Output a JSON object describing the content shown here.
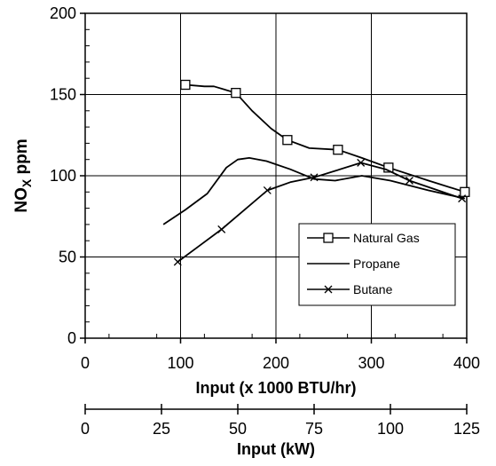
{
  "chart_data": {
    "type": "line",
    "xlabel": "Input  (x 1000 BTU/hr)",
    "ylabel_main": "NO",
    "ylabel_sub": "X",
    "ylabel_rest": " ppm",
    "xlim": [
      0,
      400
    ],
    "ylim": [
      0,
      200
    ],
    "grid": true,
    "x_ticks": [
      "0",
      "100",
      "200",
      "300",
      "400"
    ],
    "y_ticks": [
      "0",
      "50",
      "100",
      "150",
      "200"
    ],
    "secondary_axis": {
      "label": "Input  (kW)",
      "xlim": [
        0,
        125
      ],
      "ticks": [
        "0",
        "25",
        "50",
        "75",
        "100",
        "125"
      ]
    },
    "legend_position": "lower-right",
    "series": [
      {
        "name": "Natural Gas",
        "marker": "square",
        "points": [
          [
            105,
            156
          ],
          [
            125,
            155
          ],
          [
            135,
            155
          ],
          [
            158,
            151
          ],
          [
            175,
            140
          ],
          [
            195,
            129
          ],
          [
            212,
            122
          ],
          [
            235,
            117
          ],
          [
            265,
            116
          ],
          [
            290,
            111
          ],
          [
            318,
            105
          ],
          [
            360,
            97
          ],
          [
            398,
            90
          ]
        ],
        "markers": [
          [
            105,
            156
          ],
          [
            158,
            151
          ],
          [
            212,
            122
          ],
          [
            265,
            116
          ],
          [
            318,
            105
          ],
          [
            398,
            90
          ]
        ]
      },
      {
        "name": "Propane",
        "marker": "none",
        "points": [
          [
            82,
            70
          ],
          [
            105,
            79
          ],
          [
            128,
            89
          ],
          [
            148,
            105
          ],
          [
            160,
            110
          ],
          [
            172,
            111
          ],
          [
            190,
            109
          ],
          [
            215,
            104
          ],
          [
            240,
            98
          ],
          [
            262,
            97
          ],
          [
            290,
            100
          ],
          [
            320,
            97
          ],
          [
            360,
            91
          ],
          [
            398,
            86
          ]
        ],
        "markers": []
      },
      {
        "name": "Butane",
        "marker": "x",
        "points": [
          [
            97,
            47
          ],
          [
            120,
            57
          ],
          [
            143,
            67
          ],
          [
            167,
            79
          ],
          [
            191,
            91
          ],
          [
            215,
            96
          ],
          [
            240,
            99
          ],
          [
            262,
            103
          ],
          [
            289,
            108
          ],
          [
            315,
            104
          ],
          [
            340,
            97
          ],
          [
            370,
            91
          ],
          [
            395,
            86
          ]
        ],
        "markers": [
          [
            97,
            47
          ],
          [
            143,
            67
          ],
          [
            191,
            91
          ],
          [
            240,
            99
          ],
          [
            289,
            108
          ],
          [
            340,
            97
          ],
          [
            395,
            86
          ]
        ]
      }
    ]
  }
}
